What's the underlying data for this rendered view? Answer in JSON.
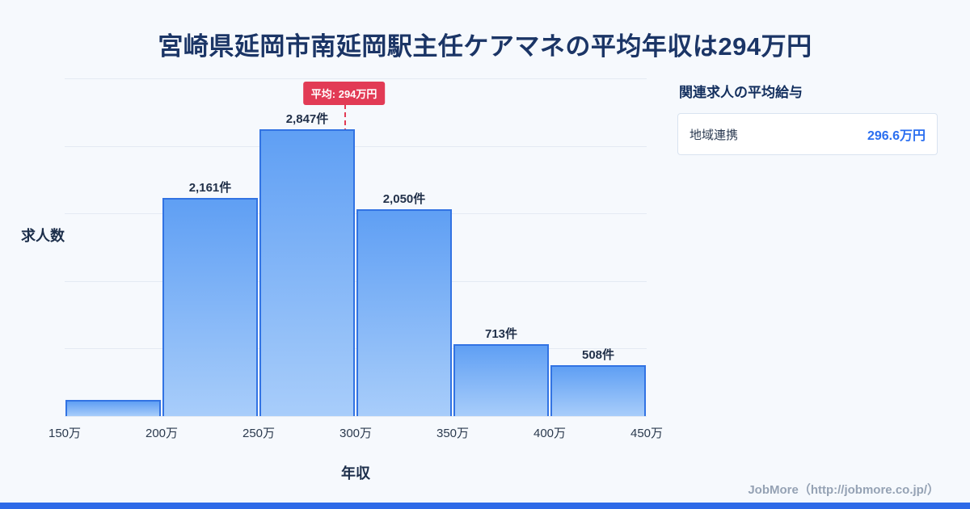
{
  "title": "宮崎県延岡市南延岡駅主任ケアマネの平均年収は294万円",
  "chart_data": {
    "type": "bar",
    "subtype": "histogram",
    "title": "宮崎県延岡市南延岡駅主任ケアマネの平均年収は294万円",
    "xlabel": "年収",
    "ylabel": "求人数",
    "bin_edge_labels": [
      "150万",
      "200万",
      "250万",
      "300万",
      "350万",
      "400万",
      "450万"
    ],
    "series": [
      {
        "name": "求人数",
        "values": [
          160,
          2161,
          2847,
          2050,
          713,
          508
        ]
      }
    ],
    "bar_labels": [
      "",
      "2,161件",
      "2,847件",
      "2,050件",
      "713件",
      "508件"
    ],
    "xlim": [
      150,
      450
    ],
    "ylim": [
      0,
      3350
    ],
    "grid": true,
    "gridline_count": 6,
    "average": {
      "value": 294,
      "label": "平均: 294万円"
    }
  },
  "side_panel": {
    "title": "関連求人の平均給与",
    "rows": [
      {
        "label": "地域連携",
        "value": "296.6万円"
      }
    ]
  },
  "footer": {
    "credit": "JobMore（http://jobmore.co.jp/）"
  },
  "colors": {
    "background": "#f6f9fd",
    "title_text": "#1b3566",
    "bar_fill_top": "#5f9ff4",
    "bar_fill_bottom": "#a8cdfa",
    "bar_border": "#3273e3",
    "average_red": "#e23b55",
    "panel_value_blue": "#2b6ff0",
    "footer_gray": "#95a2b4",
    "bottom_strip_blue": "#2e6ae8"
  }
}
